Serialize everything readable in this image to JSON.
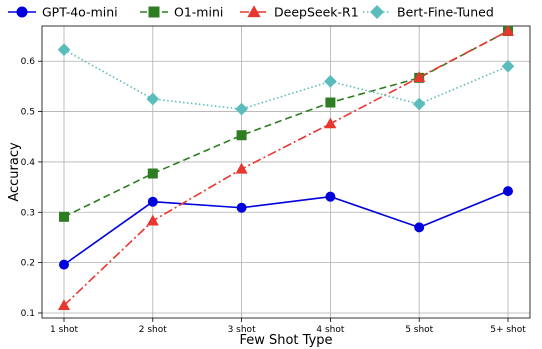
{
  "chart_data": {
    "type": "line",
    "categories": [
      "1 shot",
      "2 shot",
      "3 shot",
      "4 shot",
      "5 shot",
      "5+ shot"
    ],
    "xlabel": "Few Shot Type",
    "ylabel": "Accuracy",
    "ylim": [
      0.09,
      0.67
    ],
    "yticks": [
      0.1,
      0.2,
      0.3,
      0.4,
      0.5,
      0.6
    ],
    "grid": true,
    "legend_position": "top",
    "series": [
      {
        "name": "GPT-4o-mini",
        "color": "#0000dd",
        "marker": "circle",
        "line_style": "solid",
        "values": [
          0.196,
          0.321,
          0.309,
          0.331,
          0.27,
          0.342
        ]
      },
      {
        "name": "O1-mini",
        "color": "#2e7d22",
        "marker": "square",
        "line_style": "dashed",
        "values": [
          0.291,
          0.377,
          0.453,
          0.518,
          0.567,
          0.66
        ]
      },
      {
        "name": "DeepSeek-R1",
        "color": "#e8372e",
        "marker": "triangle",
        "line_style": "dashdot",
        "values": [
          0.115,
          0.283,
          0.386,
          0.476,
          0.568,
          0.66
        ]
      },
      {
        "name": "Bert-Fine-Tuned",
        "color": "#5bbcbc",
        "marker": "diamond",
        "line_style": "dotted",
        "values": [
          0.623,
          0.525,
          0.505,
          0.56,
          0.515,
          0.59
        ]
      }
    ]
  }
}
